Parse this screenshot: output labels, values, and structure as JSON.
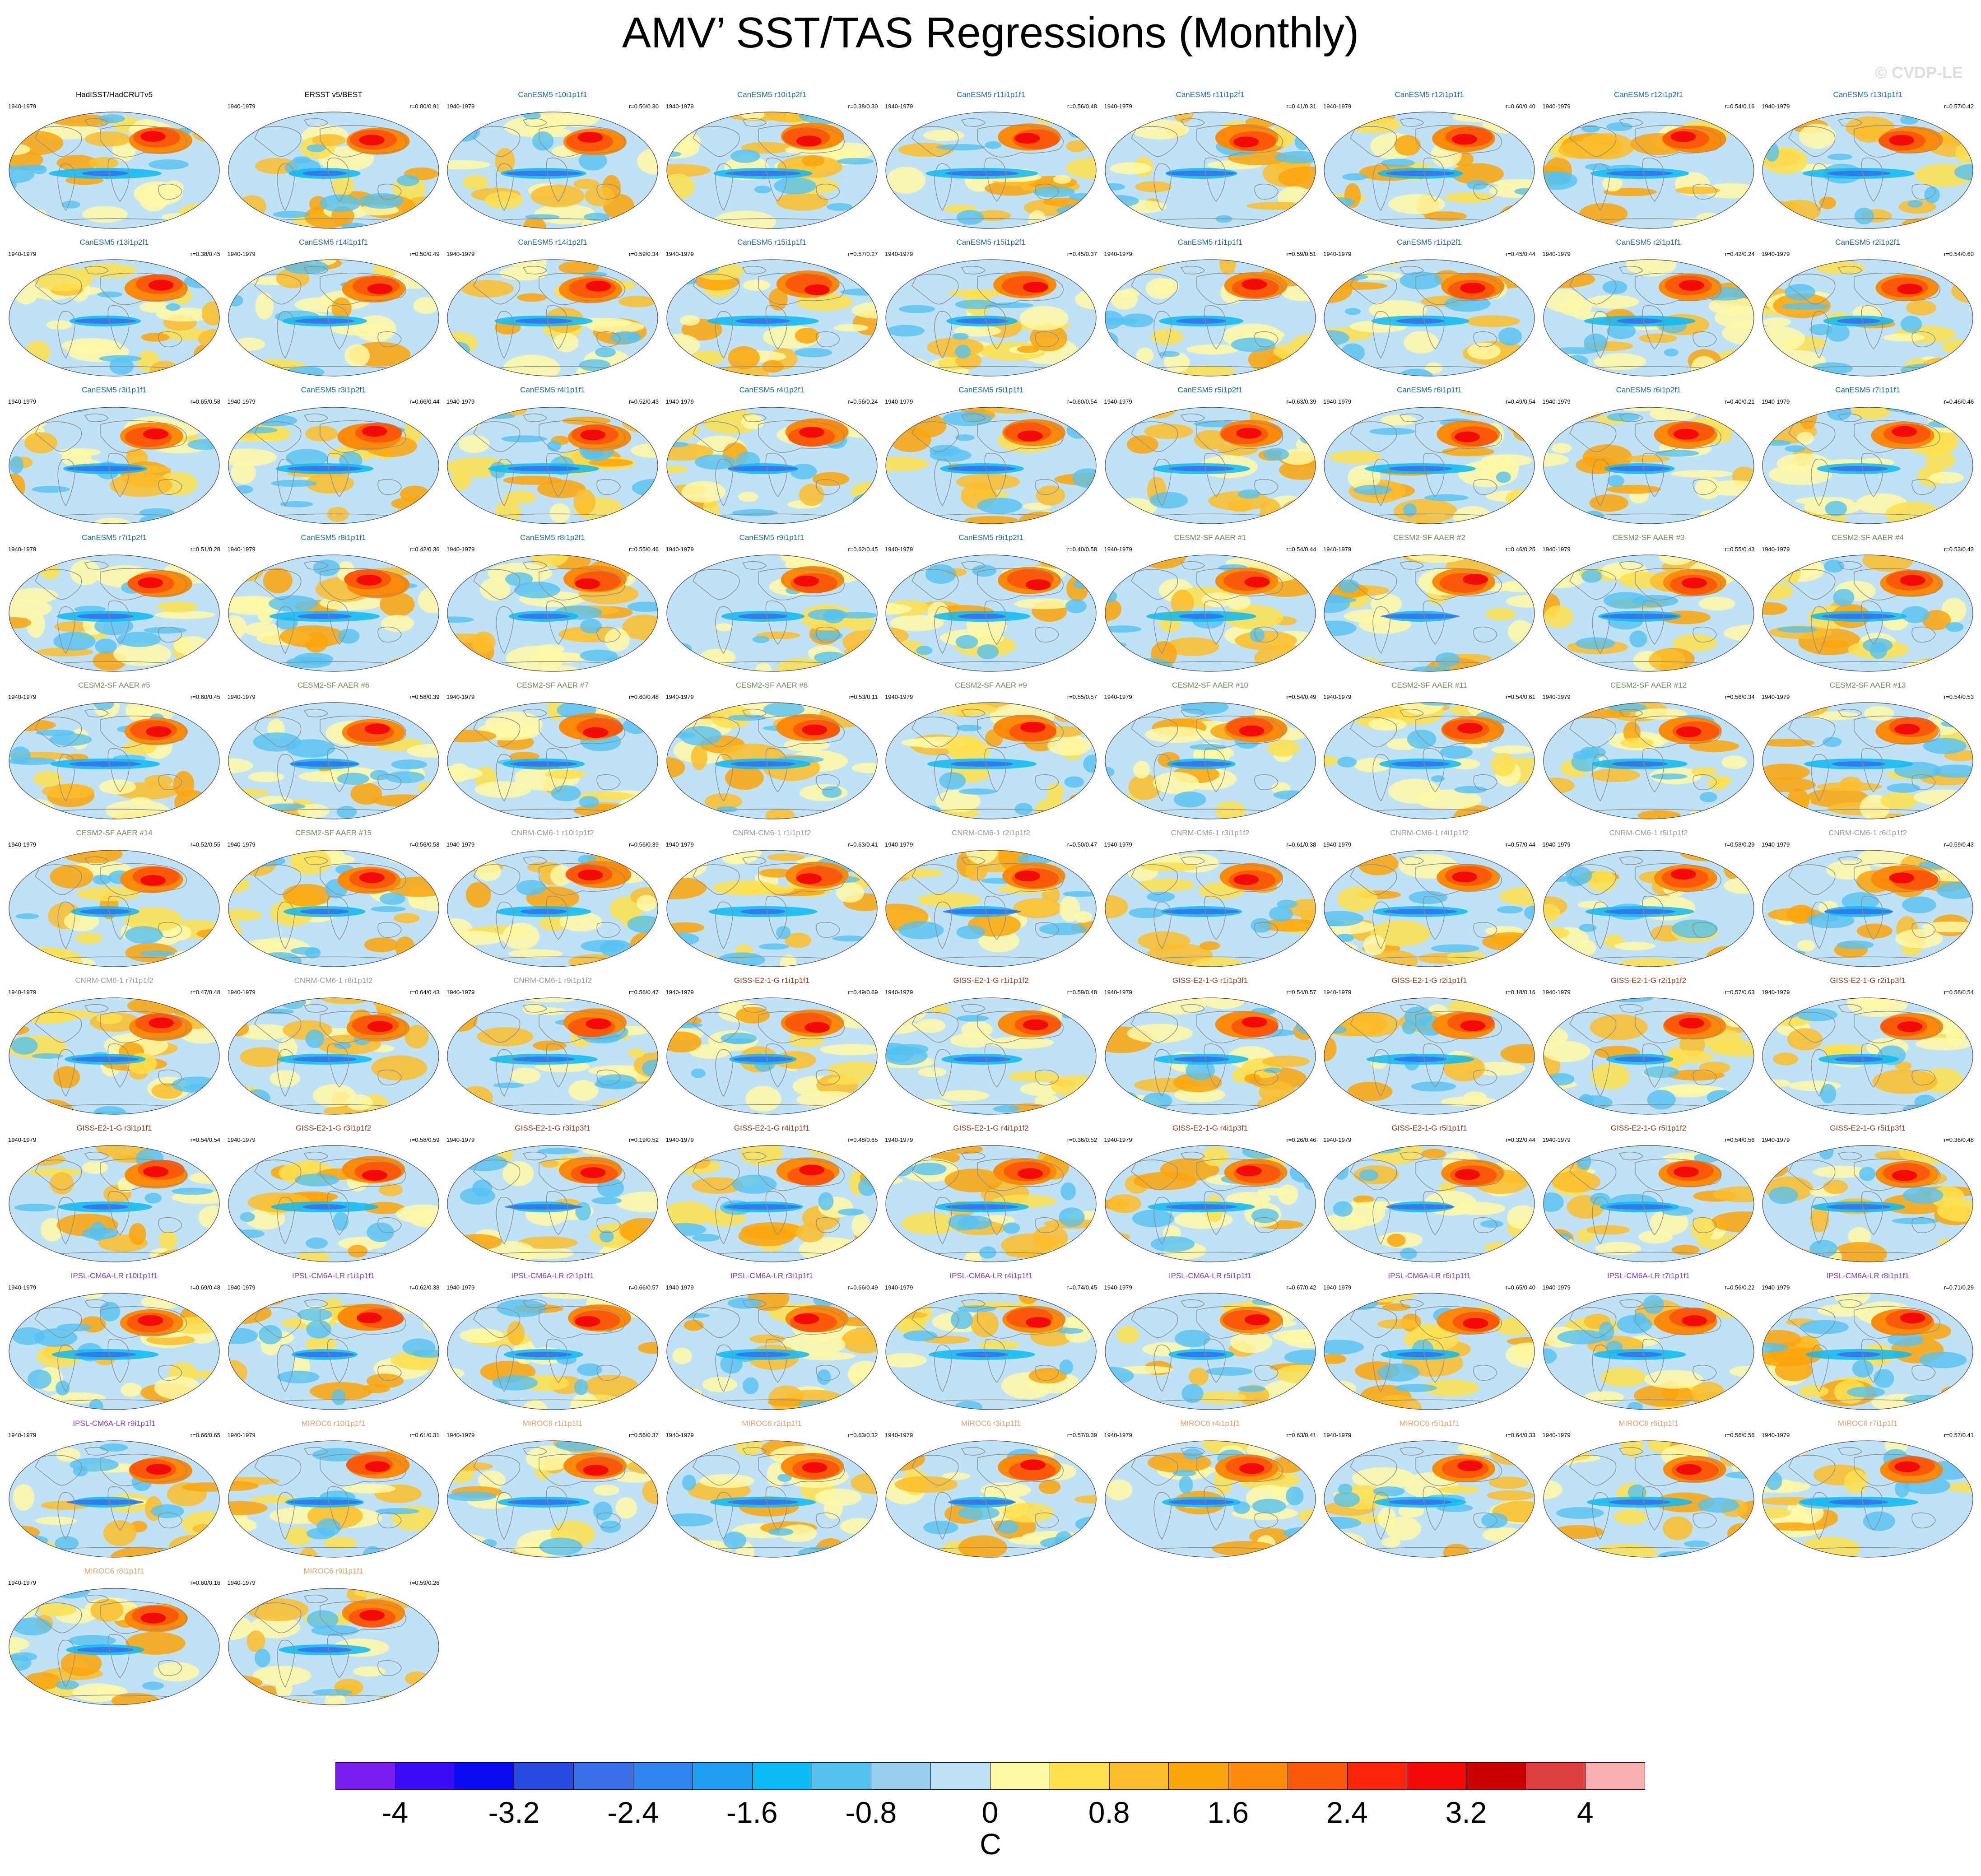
{
  "title": "AMV’ SST/TAS Regressions (Monthly)",
  "watermark": "© CVDP-LE",
  "period": "1940-1979",
  "colorbar": {
    "units": "C",
    "labels": [
      "-4",
      "-3.2",
      "-2.4",
      "-1.6",
      "-0.8",
      "0",
      "0.8",
      "1.6",
      "2.4",
      "3.2",
      "4"
    ],
    "colors": [
      "#7c1ef0",
      "#3a0cf5",
      "#0a0af0",
      "#2a4be0",
      "#3a6ee8",
      "#2f86f0",
      "#21a0f3",
      "#0cbaf5",
      "#56c2f0",
      "#98cdee",
      "#bfe2f7",
      "#fff9a6",
      "#ffe14d",
      "#fbbd2a",
      "#fba50a",
      "#fb8a0a",
      "#fb5a0a",
      "#fc260a",
      "#f50a0a",
      "#cc0000",
      "#dc4040",
      "#f8b0b0"
    ]
  },
  "panels": [
    {
      "title": "HadISST/HadCRUTv5",
      "corr": "",
      "color": "#000000"
    },
    {
      "title": "ERSST v5/BEST",
      "corr": "r=0.80/0.91",
      "color": "#000000"
    },
    {
      "title": "CanESM5 r10i1p1f1",
      "corr": "r=0.50/0.30",
      "color": "#1a6e8c"
    },
    {
      "title": "CanESM5 r10i1p2f1",
      "corr": "r=0.38/0.30",
      "color": "#1a6e8c"
    },
    {
      "title": "CanESM5 r11i1p1f1",
      "corr": "r=0.56/0.48",
      "color": "#1a6e8c"
    },
    {
      "title": "CanESM5 r11i1p2f1",
      "corr": "r=0.41/0.31",
      "color": "#1a6e8c"
    },
    {
      "title": "CanESM5 r12i1p1f1",
      "corr": "r=0.60/0.40",
      "color": "#1a6e8c"
    },
    {
      "title": "CanESM5 r12i1p2f1",
      "corr": "r=0.54/0.16",
      "color": "#1a6e8c"
    },
    {
      "title": "CanESM5 r13i1p1f1",
      "corr": "r=0.57/0.42",
      "color": "#1a6e8c"
    },
    {
      "title": "CanESM5 r13i1p2f1",
      "corr": "r=0.38/0.45",
      "color": "#1a6e8c"
    },
    {
      "title": "CanESM5 r14i1p1f1",
      "corr": "r=0.50/0.49",
      "color": "#1a6e8c"
    },
    {
      "title": "CanESM5 r14i1p2f1",
      "corr": "r=0.59/0.34",
      "color": "#1a6e8c"
    },
    {
      "title": "CanESM5 r15i1p1f1",
      "corr": "r=0.57/0.27",
      "color": "#1a6e8c"
    },
    {
      "title": "CanESM5 r15i1p2f1",
      "corr": "r=0.45/0.37",
      "color": "#1a6e8c"
    },
    {
      "title": "CanESM5 r1i1p1f1",
      "corr": "r=0.59/0.51",
      "color": "#1a6e8c"
    },
    {
      "title": "CanESM5 r1i1p2f1",
      "corr": "r=0.45/0.44",
      "color": "#1a6e8c"
    },
    {
      "title": "CanESM5 r2i1p1f1",
      "corr": "r=0.42/0.24",
      "color": "#1a6e8c"
    },
    {
      "title": "CanESM5 r2i1p2f1",
      "corr": "r=0.54/0.60",
      "color": "#1a6e8c"
    },
    {
      "title": "CanESM5 r3i1p1f1",
      "corr": "r=0.65/0.58",
      "color": "#1a6e8c"
    },
    {
      "title": "CanESM5 r3i1p2f1",
      "corr": "r=0.66/0.44",
      "color": "#1a6e8c"
    },
    {
      "title": "CanESM5 r4i1p1f1",
      "corr": "r=0.52/0.43",
      "color": "#1a6e8c"
    },
    {
      "title": "CanESM5 r4i1p2f1",
      "corr": "r=0.56/0.24",
      "color": "#1a6e8c"
    },
    {
      "title": "CanESM5 r5i1p1f1",
      "corr": "r=0.60/0.54",
      "color": "#1a6e8c"
    },
    {
      "title": "CanESM5 r5i1p2f1",
      "corr": "r=0.63/0.39",
      "color": "#1a6e8c"
    },
    {
      "title": "CanESM5 r6i1p1f1",
      "corr": "r=0.49/0.54",
      "color": "#1a6e8c"
    },
    {
      "title": "CanESM5 r6i1p2f1",
      "corr": "r=0.40/0.21",
      "color": "#1a6e8c"
    },
    {
      "title": "CanESM5 r7i1p1f1",
      "corr": "r=0.46/0.46",
      "color": "#1a6e8c"
    },
    {
      "title": "CanESM5 r7i1p2f1",
      "corr": "r=0.51/0.28",
      "color": "#1a6e8c"
    },
    {
      "title": "CanESM5 r8i1p1f1",
      "corr": "r=0.42/0.36",
      "color": "#1a6e8c"
    },
    {
      "title": "CanESM5 r8i1p2f1",
      "corr": "r=0.55/0.46",
      "color": "#1a6e8c"
    },
    {
      "title": "CanESM5 r9i1p1f1",
      "corr": "r=0.62/0.45",
      "color": "#1a6e8c"
    },
    {
      "title": "CanESM5 r9i1p2f1",
      "corr": "r=0.40/0.58",
      "color": "#1a6e8c"
    },
    {
      "title": "CESM2-SF AAER #1",
      "corr": "r=0.54/0.44",
      "color": "#6e8a5c"
    },
    {
      "title": "CESM2-SF AAER #2",
      "corr": "r=0.46/0.25",
      "color": "#6e8a5c"
    },
    {
      "title": "CESM2-SF AAER #3",
      "corr": "r=0.55/0.43",
      "color": "#6e8a5c"
    },
    {
      "title": "CESM2-SF AAER #4",
      "corr": "r=0.53/0.43",
      "color": "#6e8a5c"
    },
    {
      "title": "CESM2-SF AAER #5",
      "corr": "r=0.60/0.45",
      "color": "#6e8a5c"
    },
    {
      "title": "CESM2-SF AAER #6",
      "corr": "r=0.58/0.39",
      "color": "#6e8a5c"
    },
    {
      "title": "CESM2-SF AAER #7",
      "corr": "r=0.60/0.48",
      "color": "#6e8a5c"
    },
    {
      "title": "CESM2-SF AAER #8",
      "corr": "r=0.53/0.11",
      "color": "#6e8a5c"
    },
    {
      "title": "CESM2-SF AAER #9",
      "corr": "r=0.55/0.57",
      "color": "#6e8a5c"
    },
    {
      "title": "CESM2-SF AAER #10",
      "corr": "r=0.54/0.49",
      "color": "#6e8a5c"
    },
    {
      "title": "CESM2-SF AAER #11",
      "corr": "r=0.54/0.61",
      "color": "#6e8a5c"
    },
    {
      "title": "CESM2-SF AAER #12",
      "corr": "r=0.56/0.34",
      "color": "#6e8a5c"
    },
    {
      "title": "CESM2-SF AAER #13",
      "corr": "r=0.54/0.53",
      "color": "#6e8a5c"
    },
    {
      "title": "CESM2-SF AAER #14",
      "corr": "r=0.52/0.55",
      "color": "#6e8a5c"
    },
    {
      "title": "CESM2-SF AAER #15",
      "corr": "r=0.56/0.58",
      "color": "#6e8a5c"
    },
    {
      "title": "CNRM-CM6-1 r10i1p1f2",
      "corr": "r=0.56/0.39",
      "color": "#9a9a9a"
    },
    {
      "title": "CNRM-CM6-1 r1i1p1f2",
      "corr": "r=0.63/0.41",
      "color": "#9a9a9a"
    },
    {
      "title": "CNRM-CM6-1 r2i1p1f2",
      "corr": "r=0.50/0.47",
      "color": "#9a9a9a"
    },
    {
      "title": "CNRM-CM6-1 r3i1p1f2",
      "corr": "r=0.61/0.38",
      "color": "#9a9a9a"
    },
    {
      "title": "CNRM-CM6-1 r4i1p1f2",
      "corr": "r=0.57/0.44",
      "color": "#9a9a9a"
    },
    {
      "title": "CNRM-CM6-1 r5i1p1f2",
      "corr": "r=0.58/0.29",
      "color": "#9a9a9a"
    },
    {
      "title": "CNRM-CM6-1 r6i1p1f2",
      "corr": "r=0.59/0.43",
      "color": "#9a9a9a"
    },
    {
      "title": "CNRM-CM6-1 r7i1p1f2",
      "corr": "r=0.47/0.48",
      "color": "#9a9a9a"
    },
    {
      "title": "CNRM-CM6-1 r8i1p1f2",
      "corr": "r=0.64/0.43",
      "color": "#9a9a9a"
    },
    {
      "title": "CNRM-CM6-1 r9i1p1f2",
      "corr": "r=0.56/0.47",
      "color": "#9a9a9a"
    },
    {
      "title": "GISS-E2-1-G r1i1p1f1",
      "corr": "r=0.49/0.69",
      "color": "#8a3a1a"
    },
    {
      "title": "GISS-E2-1-G r1i1p1f2",
      "corr": "r=0.59/0.48",
      "color": "#8a3a1a"
    },
    {
      "title": "GISS-E2-1-G r1i1p3f1",
      "corr": "r=0.54/0.57",
      "color": "#8a3a1a"
    },
    {
      "title": "GISS-E2-1-G r2i1p1f1",
      "corr": "r=0.18/0.16",
      "color": "#8a3a1a"
    },
    {
      "title": "GISS-E2-1-G r2i1p1f2",
      "corr": "r=0.57/0.63",
      "color": "#8a3a1a"
    },
    {
      "title": "GISS-E2-1-G r2i1p3f1",
      "corr": "r=0.58/0.54",
      "color": "#8a3a1a"
    },
    {
      "title": "GISS-E2-1-G r3i1p1f1",
      "corr": "r=0.54/0.54",
      "color": "#8a3a1a"
    },
    {
      "title": "GISS-E2-1-G r3i1p1f2",
      "corr": "r=0.58/0.59",
      "color": "#8a3a1a"
    },
    {
      "title": "GISS-E2-1-G r3i1p3f1",
      "corr": "r=0.19/0.52",
      "color": "#8a3a1a"
    },
    {
      "title": "GISS-E2-1-G r4i1p1f1",
      "corr": "r=0.48/0.65",
      "color": "#8a3a1a"
    },
    {
      "title": "GISS-E2-1-G r4i1p1f2",
      "corr": "r=0.36/0.52",
      "color": "#8a3a1a"
    },
    {
      "title": "GISS-E2-1-G r4i1p3f1",
      "corr": "r=0.26/0.46",
      "color": "#8a3a1a"
    },
    {
      "title": "GISS-E2-1-G r5i1p1f1",
      "corr": "r=0.32/0.44",
      "color": "#8a3a1a"
    },
    {
      "title": "GISS-E2-1-G r5i1p1f2",
      "corr": "r=0.54/0.56",
      "color": "#8a3a1a"
    },
    {
      "title": "GISS-E2-1-G r5i1p3f1",
      "corr": "r=0.36/0.48",
      "color": "#8a3a1a"
    },
    {
      "title": "IPSL-CM6A-LR r10i1p1f1",
      "corr": "r=0.69/0.48",
      "color": "#8a3ad0"
    },
    {
      "title": "IPSL-CM6A-LR r1i1p1f1",
      "corr": "r=0.62/0.38",
      "color": "#8a3ad0"
    },
    {
      "title": "IPSL-CM6A-LR r2i1p1f1",
      "corr": "r=0.66/0.57",
      "color": "#8a3ad0"
    },
    {
      "title": "IPSL-CM6A-LR r3i1p1f1",
      "corr": "r=0.66/0.49",
      "color": "#8a3ad0"
    },
    {
      "title": "IPSL-CM6A-LR r4i1p1f1",
      "corr": "r=0.74/0.45",
      "color": "#8a3ad0"
    },
    {
      "title": "IPSL-CM6A-LR r5i1p1f1",
      "corr": "r=0.67/0.42",
      "color": "#8a3ad0"
    },
    {
      "title": "IPSL-CM6A-LR r6i1p1f1",
      "corr": "r=0.65/0.40",
      "color": "#8a3ad0"
    },
    {
      "title": "IPSL-CM6A-LR r7i1p1f1",
      "corr": "r=0.56/0.22",
      "color": "#8a3ad0"
    },
    {
      "title": "IPSL-CM6A-LR r8i1p1f1",
      "corr": "r=0.71/0.29",
      "color": "#8a3ad0"
    },
    {
      "title": "IPSL-CM6A-LR r9i1p1f1",
      "corr": "r=0.66/0.65",
      "color": "#8a3ad0"
    },
    {
      "title": "MIROC6 r10i1p1f1",
      "corr": "r=0.61/0.31",
      "color": "#e8a068"
    },
    {
      "title": "MIROC6 r1i1p1f1",
      "corr": "r=0.56/0.37",
      "color": "#e8a068"
    },
    {
      "title": "MIROC6 r2i1p1f1",
      "corr": "r=0.63/0.32",
      "color": "#e8a068"
    },
    {
      "title": "MIROC6 r3i1p1f1",
      "corr": "r=0.57/0.39",
      "color": "#e8a068"
    },
    {
      "title": "MIROC6 r4i1p1f1",
      "corr": "r=0.63/0.41",
      "color": "#e8a068"
    },
    {
      "title": "MIROC6 r5i1p1f1",
      "corr": "r=0.64/0.33",
      "color": "#e8a068"
    },
    {
      "title": "MIROC6 r6i1p1f1",
      "corr": "r=0.56/0.56",
      "color": "#e8a068"
    },
    {
      "title": "MIROC6 r7i1p1f1",
      "corr": "r=0.57/0.41",
      "color": "#e8a068"
    },
    {
      "title": "MIROC6 r8i1p1f1",
      "corr": "r=0.60/0.16",
      "color": "#e8a068"
    },
    {
      "title": "MIROC6 r9i1p1f1",
      "corr": "r=0.59/0.26",
      "color": "#e8a068"
    }
  ]
}
